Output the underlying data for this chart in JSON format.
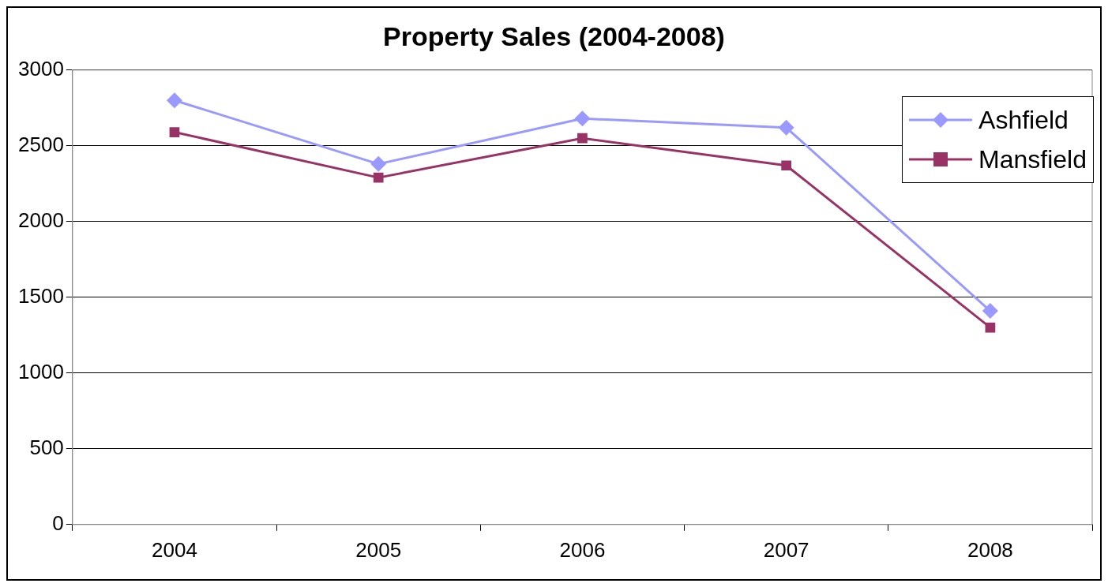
{
  "chart_data": {
    "type": "line",
    "title": "Property Sales (2004-2008)",
    "categories": [
      "2004",
      "2005",
      "2006",
      "2007",
      "2008"
    ],
    "series": [
      {
        "name": "Ashfield",
        "color": "#9999ff",
        "marker": "diamond",
        "values": [
          2800,
          2380,
          2680,
          2620,
          1410
        ]
      },
      {
        "name": "Mansfield",
        "color": "#993366",
        "marker": "square",
        "values": [
          2590,
          2290,
          2550,
          2370,
          1300
        ]
      }
    ],
    "ylim": [
      0,
      3000
    ],
    "yticks": [
      0,
      500,
      1000,
      1500,
      2000,
      2500,
      3000
    ],
    "grid": "y",
    "legend": "top right"
  }
}
